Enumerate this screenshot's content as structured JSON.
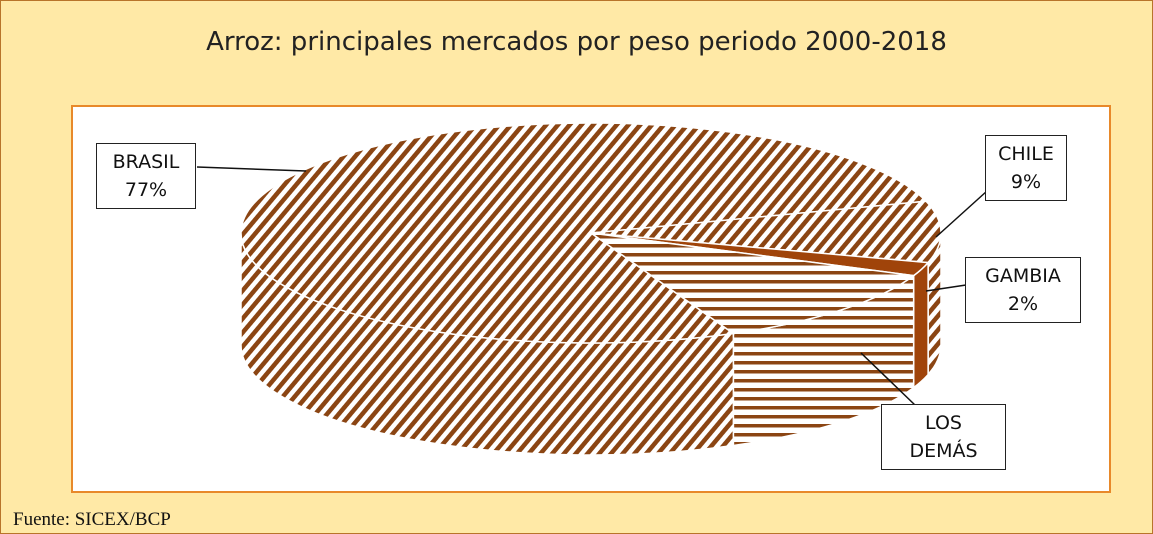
{
  "chart_data": {
    "type": "pie3d",
    "title": "Arroz: principales mercados por peso periodo 2000-2018",
    "categories": [
      "BRASIL",
      "CHILE",
      "GAMBIA",
      "LOS DEMÁS"
    ],
    "values": [
      77,
      9,
      2,
      12
    ],
    "value_labels": [
      "77%",
      "9%",
      "2%",
      null
    ],
    "colors": [
      "#8b4513",
      "#8b4513",
      "#a0440a",
      "#8b4513"
    ],
    "hatch": [
      "diagonal",
      "diagonal",
      "solid",
      "horizontal"
    ],
    "source": "Fuente: SICEX/BCP"
  }
}
